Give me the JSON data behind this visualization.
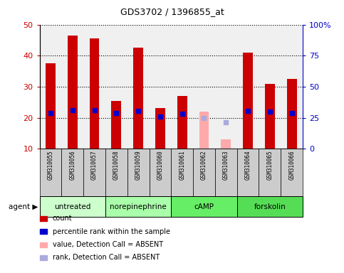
{
  "title": "GDS3702 / 1396855_at",
  "samples": [
    "GSM310055",
    "GSM310056",
    "GSM310057",
    "GSM310058",
    "GSM310059",
    "GSM310060",
    "GSM310061",
    "GSM310062",
    "GSM310063",
    "GSM310064",
    "GSM310065",
    "GSM310066"
  ],
  "count_values": [
    37.5,
    46.5,
    45.5,
    25.5,
    42.5,
    23.0,
    27.0,
    null,
    null,
    41.0,
    31.0,
    32.5
  ],
  "rank_values": [
    29.0,
    31.0,
    31.0,
    28.5,
    30.5,
    26.0,
    28.0,
    null,
    null,
    30.5,
    30.0,
    29.0
  ],
  "absent_count": [
    null,
    null,
    null,
    null,
    null,
    null,
    null,
    22.0,
    13.0,
    null,
    null,
    null
  ],
  "absent_rank": [
    null,
    null,
    null,
    null,
    null,
    null,
    null,
    24.5,
    21.5,
    null,
    null,
    null
  ],
  "count_color": "#cc0000",
  "rank_color": "#0000cc",
  "absent_count_color": "#ffaaaa",
  "absent_rank_color": "#aaaadd",
  "ylim_left": [
    10,
    50
  ],
  "ylim_right": [
    0,
    100
  ],
  "yticks_left": [
    10,
    20,
    30,
    40,
    50
  ],
  "yticks_right": [
    0,
    25,
    50,
    75,
    100
  ],
  "ytick_labels_right": [
    "0",
    "25",
    "50",
    "75",
    "100%"
  ],
  "groups": [
    {
      "label": "untreated",
      "start": 0,
      "end": 3,
      "color": "#ccffcc"
    },
    {
      "label": "norepinephrine",
      "start": 3,
      "end": 6,
      "color": "#aaffaa"
    },
    {
      "label": "cAMP",
      "start": 6,
      "end": 9,
      "color": "#66ee66"
    },
    {
      "label": "forskolin",
      "start": 9,
      "end": 12,
      "color": "#55dd55"
    }
  ],
  "agent_label": "agent",
  "bar_width": 0.45,
  "rank_marker_size": 5,
  "legend_items": [
    {
      "label": "count",
      "color": "#cc0000"
    },
    {
      "label": "percentile rank within the sample",
      "color": "#0000cc"
    },
    {
      "label": "value, Detection Call = ABSENT",
      "color": "#ffaaaa"
    },
    {
      "label": "rank, Detection Call = ABSENT",
      "color": "#aaaadd"
    }
  ],
  "grid_yticks": [
    20,
    30,
    40,
    50
  ],
  "background_plot": "#f0f0f0",
  "background_xtick": "#cccccc",
  "white_bg": "#ffffff"
}
